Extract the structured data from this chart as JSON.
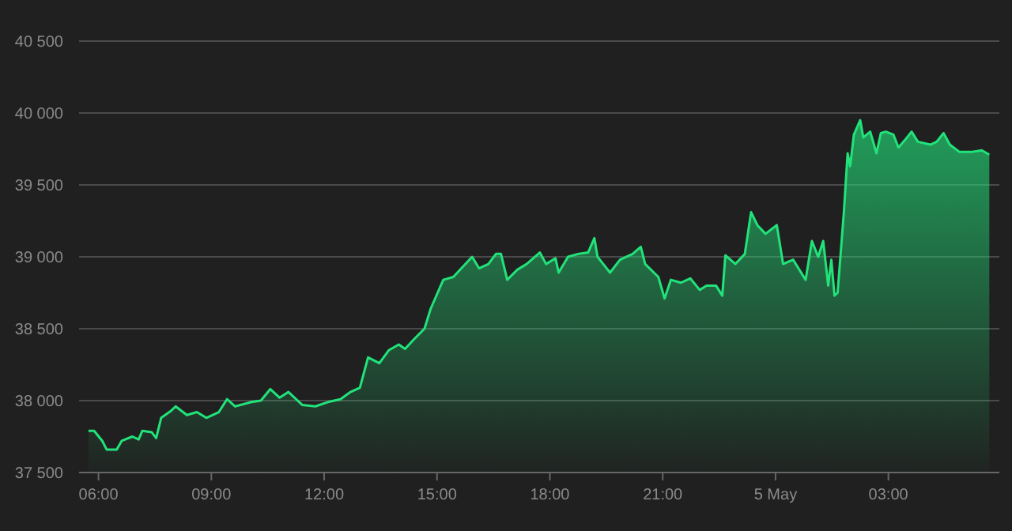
{
  "chart_data": {
    "type": "area",
    "grid": "y",
    "xlim": [
      "--05-04T05:29",
      "--05-05T05:57"
    ],
    "ylim": [
      37500,
      40500
    ],
    "xticks": [
      {
        "value": "--05-04T06:00",
        "label": "06:00"
      },
      {
        "value": "--05-04T09:00",
        "label": "09:00"
      },
      {
        "value": "--05-04T12:00",
        "label": "12:00"
      },
      {
        "value": "--05-04T15:00",
        "label": "15:00"
      },
      {
        "value": "--05-04T18:00",
        "label": "18:00"
      },
      {
        "value": "--05-04T21:00",
        "label": "21:00"
      },
      {
        "value": "--05-05T00:00",
        "label": "5 May"
      },
      {
        "value": "--05-05T03:00",
        "label": "03:00"
      }
    ],
    "yticks": [
      {
        "value": 37500,
        "label": "37 500"
      },
      {
        "value": 38000,
        "label": "38 000"
      },
      {
        "value": 38500,
        "label": "38 500"
      },
      {
        "value": 39000,
        "label": "39 000"
      },
      {
        "value": 39500,
        "label": "39 500"
      },
      {
        "value": 40000,
        "label": "40 000"
      },
      {
        "value": 40500,
        "label": "40 500"
      }
    ],
    "series": [
      {
        "color": "#22e27a",
        "x": [
          "--05-04T05:44",
          "--05-04T05:53",
          "--05-04T06:06",
          "--05-04T06:13",
          "--05-04T06:29",
          "--05-04T06:37",
          "--05-04T06:54",
          "--05-04T07:04",
          "--05-04T07:10",
          "--05-04T07:25",
          "--05-04T07:32",
          "--05-04T07:40",
          "--05-04T07:56",
          "--05-04T08:03",
          "--05-04T08:21",
          "--05-04T08:37",
          "--05-04T08:52",
          "--05-04T09:12",
          "--05-04T09:25",
          "--05-04T09:38",
          "--05-04T10:04",
          "--05-04T10:19",
          "--05-04T10:34",
          "--05-04T10:49",
          "--05-04T11:03",
          "--05-04T11:25",
          "--05-04T11:46",
          "--05-04T12:06",
          "--05-04T12:26",
          "--05-04T12:42",
          "--05-04T12:57",
          "--05-04T13:10",
          "--05-04T13:28",
          "--05-04T13:43",
          "--05-04T13:59",
          "--05-04T14:09",
          "--05-04T14:24",
          "--05-04T14:40",
          "--05-04T14:50",
          "--05-04T15:10",
          "--05-04T15:26",
          "--05-04T15:41",
          "--05-04T15:56",
          "--05-04T16:07",
          "--05-04T16:22",
          "--05-04T16:34",
          "--05-04T16:42",
          "--05-04T16:52",
          "--05-04T17:08",
          "--05-04T17:23",
          "--05-04T17:44",
          "--05-04T17:54",
          "--05-04T18:09",
          "--05-04T18:14",
          "--05-04T18:29",
          "--05-04T18:45",
          "--05-04T19:01",
          "--05-04T19:11",
          "--05-04T19:16",
          "--05-04T19:36",
          "--05-04T19:52",
          "--05-04T20:12",
          "--05-04T20:25",
          "--05-04T20:32",
          "--05-04T20:53",
          "--05-04T21:03",
          "--05-04T21:13",
          "--05-04T21:29",
          "--05-04T21:44",
          "--05-04T21:59",
          "--05-04T22:10",
          "--05-04T22:25",
          "--05-04T22:35",
          "--05-04T22:40",
          "--05-04T22:56",
          "--05-04T23:11",
          "--05-04T23:21",
          "--05-04T23:31",
          "--05-04T23:44",
          "--05-05T00:02",
          "--05-05T00:12",
          "--05-05T00:28",
          "--05-05T00:48",
          "--05-05T00:58",
          "--05-05T01:08",
          "--05-05T01:16",
          "--05-05T01:24",
          "--05-05T01:29",
          "--05-05T01:34",
          "--05-05T01:39",
          "--05-05T01:49",
          "--05-05T01:55",
          "--05-05T01:59",
          "--05-05T02:05",
          "--05-05T02:15",
          "--05-05T02:20",
          "--05-05T02:31",
          "--05-05T02:41",
          "--05-05T02:48",
          "--05-05T02:56",
          "--05-05T03:08",
          "--05-05T03:16",
          "--05-05T03:26",
          "--05-05T03:37",
          "--05-05T03:47",
          "--05-05T04:07",
          "--05-05T04:17",
          "--05-05T04:28",
          "--05-05T04:38",
          "--05-05T04:53",
          "--05-05T05:14",
          "--05-05T05:29",
          "--05-05T05:41"
        ],
        "values": [
          37790,
          37790,
          37720,
          37660,
          37660,
          37720,
          37750,
          37730,
          37790,
          37780,
          37740,
          37880,
          37930,
          37960,
          37900,
          37920,
          37880,
          37920,
          38010,
          37960,
          37990,
          38000,
          38080,
          38020,
          38060,
          37970,
          37960,
          37990,
          38010,
          38060,
          38090,
          38300,
          38260,
          38350,
          38390,
          38360,
          38430,
          38500,
          38640,
          38840,
          38860,
          38930,
          39000,
          38920,
          38950,
          39020,
          39020,
          38840,
          38910,
          38950,
          39030,
          38950,
          38990,
          38890,
          39000,
          39020,
          39030,
          39130,
          39000,
          38890,
          38980,
          39020,
          39070,
          38950,
          38860,
          38710,
          38840,
          38820,
          38850,
          38770,
          38800,
          38800,
          38730,
          39010,
          38950,
          39020,
          39310,
          39220,
          39160,
          39220,
          38950,
          38980,
          38840,
          39110,
          39000,
          39110,
          38800,
          38980,
          38730,
          38750,
          39310,
          39720,
          39630,
          39850,
          39950,
          39830,
          39870,
          39720,
          39860,
          39870,
          39850,
          39760,
          39810,
          39870,
          39800,
          39780,
          39800,
          39860,
          39780,
          39730,
          39730,
          39740,
          39710
        ]
      }
    ]
  }
}
